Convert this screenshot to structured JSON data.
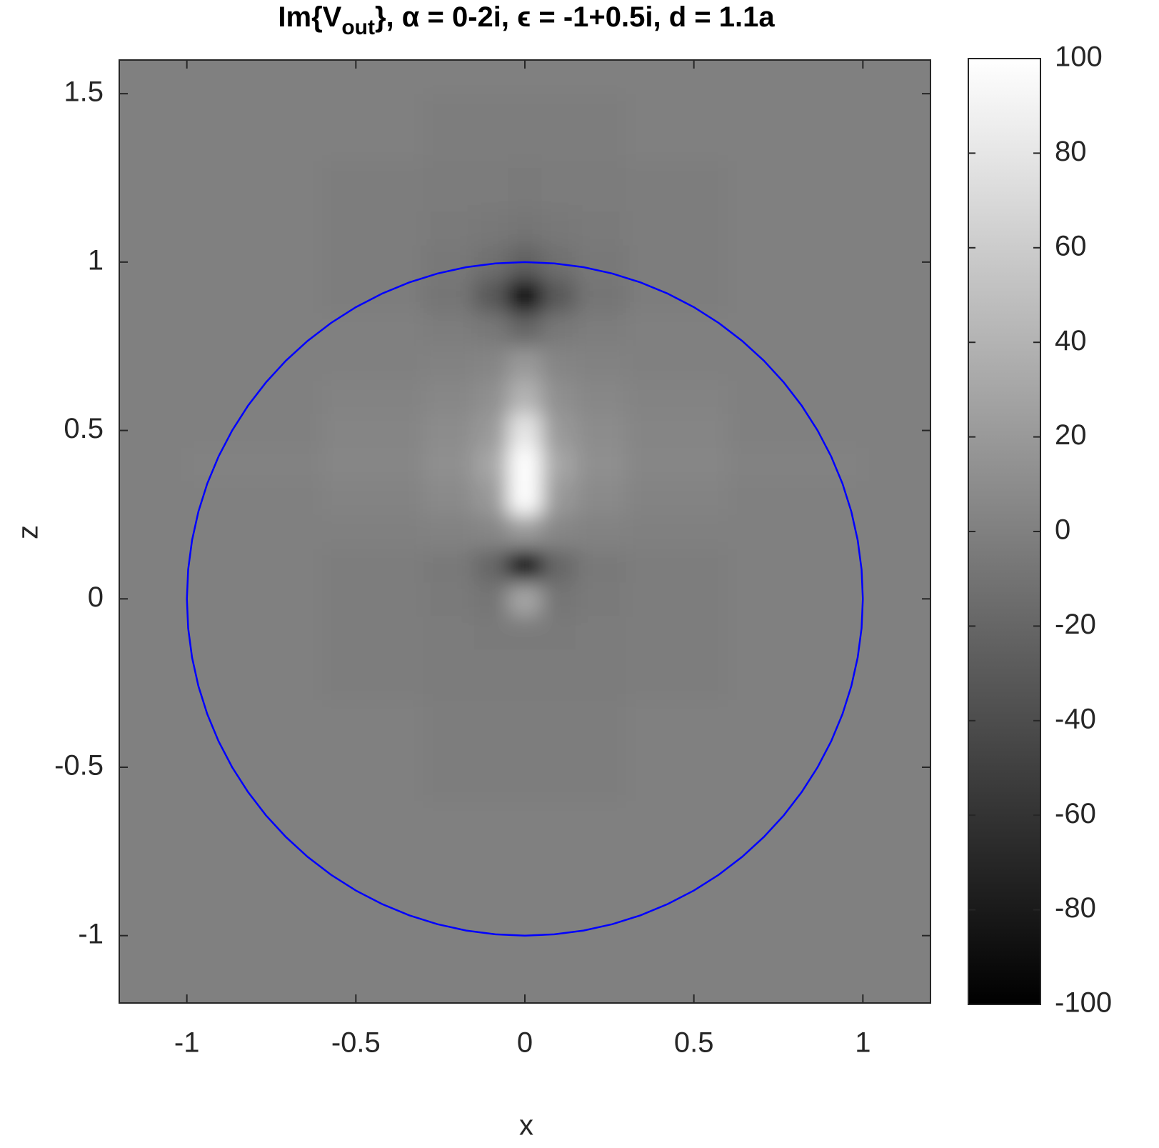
{
  "chart_data": {
    "type": "heatmap",
    "title": [
      "Im{V",
      "out",
      "}, α = 0-2i,  ϵ = -1+0.5i,  d = 1.1a"
    ],
    "xlabel": "x",
    "ylabel": "z",
    "xlim": [
      -1.2,
      1.2
    ],
    "ylim": [
      -1.2,
      1.6
    ],
    "xticks": [
      -1,
      -0.5,
      0,
      0.5,
      1
    ],
    "yticks": [
      -1,
      -0.5,
      0,
      0.5,
      1,
      1.5
    ],
    "clim": [
      -100,
      100
    ],
    "cticks": [
      -100,
      -80,
      -60,
      -40,
      -20,
      0,
      20,
      40,
      60,
      80,
      100
    ],
    "colormap": "gray",
    "x": [
      -1.2,
      -0.8,
      -0.4,
      -0.2,
      -0.1,
      0,
      0.1,
      0.2,
      0.4,
      0.8,
      1.2
    ],
    "y": [
      -1.2,
      -0.8,
      -0.4,
      -0.2,
      -0.1,
      0,
      0.1,
      0.2,
      0.3,
      0.4,
      0.5,
      0.6,
      0.7,
      0.8,
      0.9,
      1.0,
      1.1,
      1.2,
      1.4,
      1.6
    ],
    "z": [
      [
        0,
        0,
        0,
        0,
        0,
        0,
        0,
        0,
        0,
        0,
        0
      ],
      [
        0,
        0,
        0,
        0,
        0,
        0,
        0,
        0,
        0,
        0,
        0
      ],
      [
        0,
        0,
        0,
        -2,
        -2,
        -2,
        -2,
        -2,
        0,
        0,
        0
      ],
      [
        0,
        0,
        -2,
        -3,
        -3,
        -3,
        -3,
        -3,
        -2,
        0,
        0
      ],
      [
        0,
        0,
        -2,
        -3,
        -4,
        -4,
        -4,
        -3,
        -2,
        0,
        0
      ],
      [
        0,
        0,
        -2,
        -4,
        -8,
        30,
        -8,
        -4,
        -2,
        0,
        0
      ],
      [
        0,
        0,
        -2,
        -5,
        -20,
        -100,
        -20,
        -5,
        -2,
        0,
        0
      ],
      [
        0,
        0,
        0,
        2,
        5,
        20,
        5,
        2,
        0,
        0,
        0
      ],
      [
        0,
        0,
        3,
        8,
        20,
        100,
        20,
        8,
        3,
        0,
        0
      ],
      [
        0,
        2,
        5,
        12,
        30,
        100,
        30,
        12,
        5,
        2,
        0
      ],
      [
        0,
        0,
        4,
        10,
        20,
        80,
        20,
        10,
        4,
        0,
        0
      ],
      [
        0,
        0,
        3,
        6,
        12,
        40,
        12,
        6,
        3,
        0,
        0
      ],
      [
        0,
        0,
        0,
        2,
        4,
        20,
        4,
        2,
        0,
        0,
        0
      ],
      [
        0,
        0,
        0,
        -2,
        -6,
        -20,
        -6,
        -2,
        0,
        0,
        0
      ],
      [
        0,
        0,
        -2,
        -8,
        -30,
        -100,
        -30,
        -8,
        -2,
        0,
        0
      ],
      [
        0,
        0,
        -2,
        -6,
        -12,
        -25,
        -12,
        -6,
        -2,
        0,
        0
      ],
      [
        0,
        0,
        -2,
        -4,
        -6,
        -8,
        -6,
        -4,
        -2,
        0,
        0
      ],
      [
        0,
        0,
        -2,
        -3,
        -3,
        -4,
        -3,
        -3,
        -2,
        0,
        0
      ],
      [
        0,
        0,
        0,
        -2,
        -2,
        -2,
        -2,
        -2,
        0,
        0,
        0
      ],
      [
        0,
        0,
        0,
        0,
        0,
        0,
        0,
        0,
        0,
        0,
        0
      ]
    ],
    "circle": {
      "center": [
        0,
        0
      ],
      "radius": 1,
      "color": "#0000ff"
    }
  }
}
